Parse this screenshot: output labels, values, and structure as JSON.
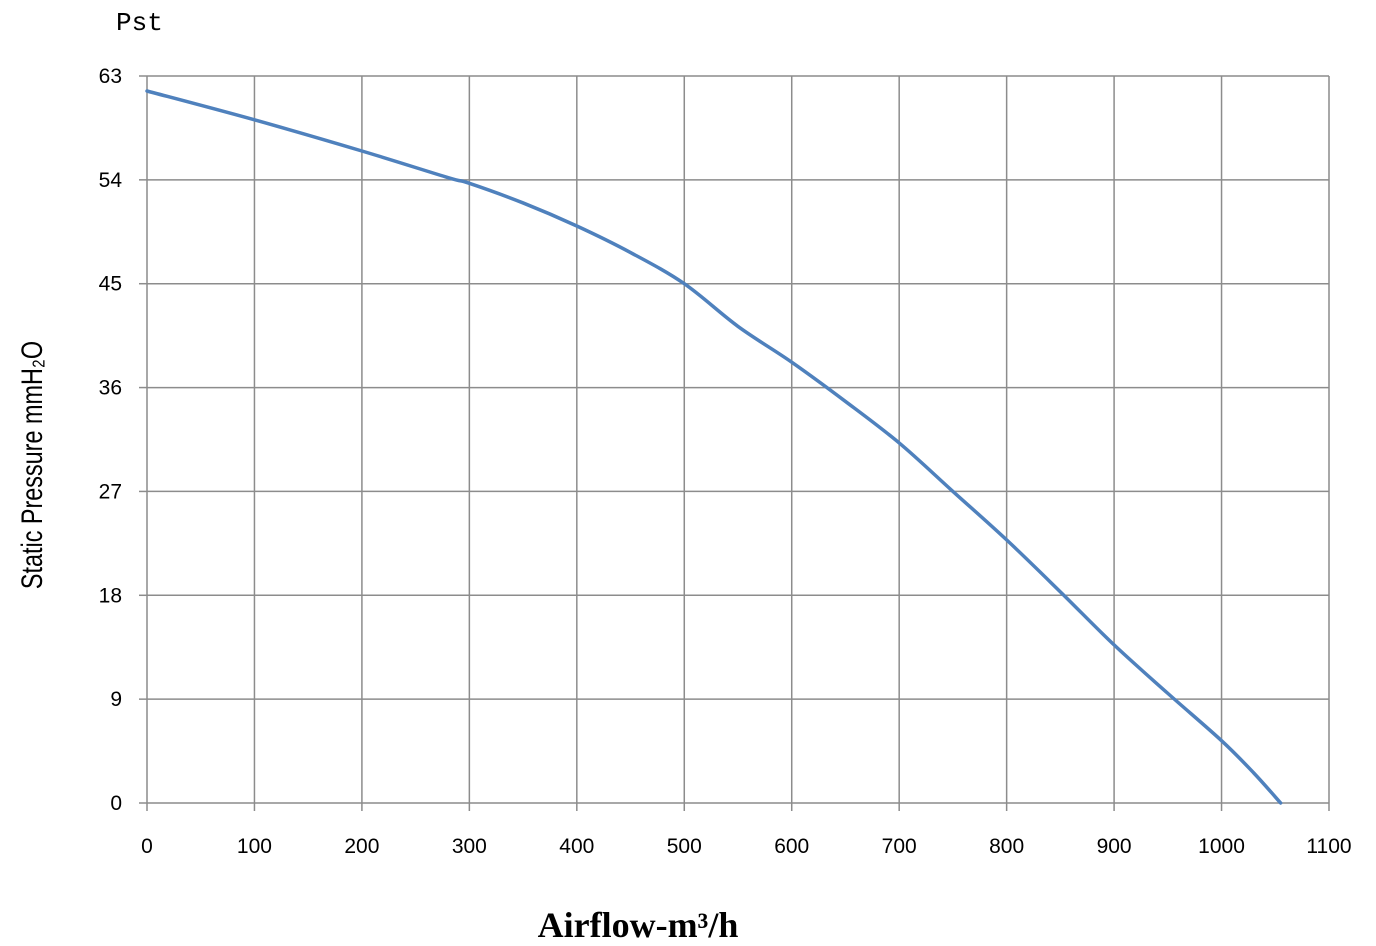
{
  "chart_data": {
    "type": "line",
    "title": "",
    "unit_label": "Pst",
    "xlabel": "Airflow-m³/h",
    "ylabel": "Static Pressure mmH₂O",
    "xlim": [
      0,
      1100
    ],
    "ylim": [
      0,
      63
    ],
    "x_ticks": [
      0,
      100,
      200,
      300,
      400,
      500,
      600,
      700,
      800,
      900,
      1000,
      1100
    ],
    "y_ticks": [
      0,
      9,
      18,
      27,
      36,
      45,
      54,
      63
    ],
    "grid": true,
    "line_color": "#4f81bd",
    "series": [
      {
        "x": [
          0,
          100,
          200,
          280,
          300,
          350,
          400,
          450,
          500,
          550,
          600,
          650,
          700,
          750,
          800,
          850,
          900,
          950,
          1000,
          1030,
          1055
        ],
        "y": [
          61.7,
          59.2,
          56.5,
          54.2,
          53.7,
          52.0,
          50.0,
          47.7,
          45.0,
          41.3,
          38.2,
          34.8,
          31.2,
          27.0,
          22.8,
          18.3,
          13.7,
          9.5,
          5.4,
          2.6,
          0
        ]
      }
    ]
  }
}
